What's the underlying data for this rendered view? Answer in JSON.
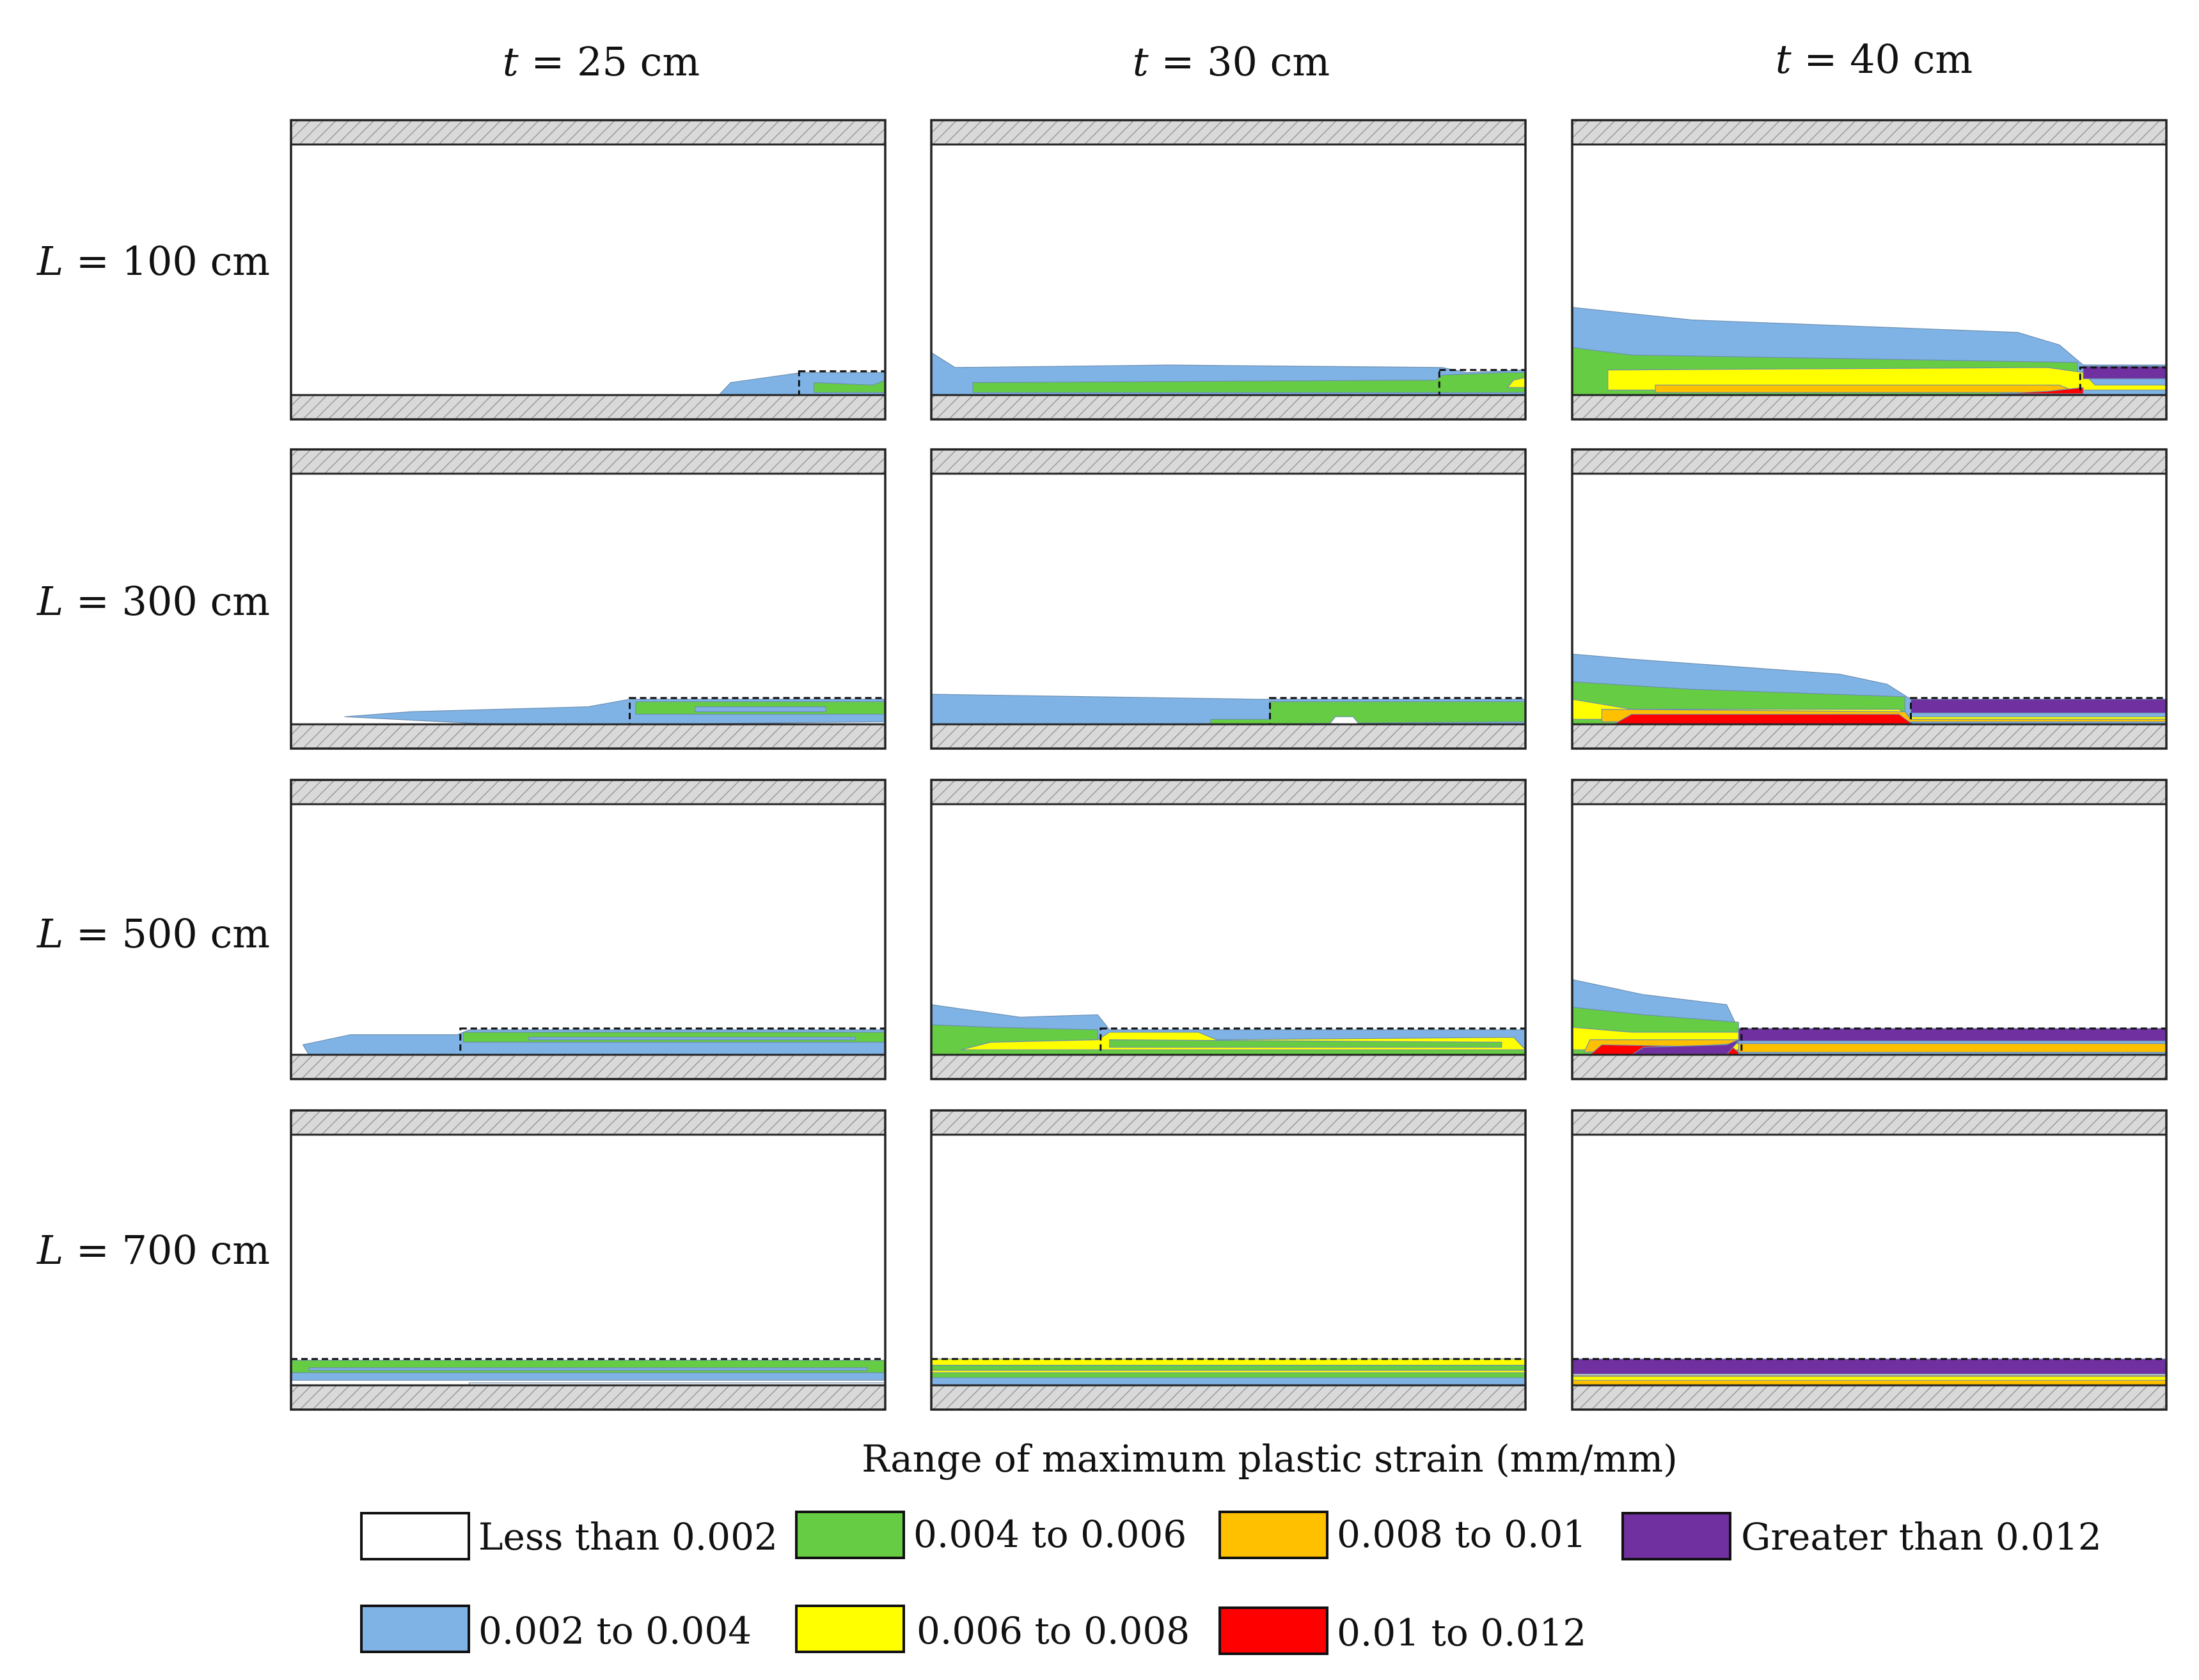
{
  "column_headers": [
    {
      "var": "t",
      "rest": " = 25 cm"
    },
    {
      "var": "t",
      "rest": " = 30 cm"
    },
    {
      "var": "t",
      "rest": " = 40 cm"
    }
  ],
  "row_headers": [
    {
      "var": "L",
      "rest": " = 100 cm"
    },
    {
      "var": "L",
      "rest": " = 300 cm"
    },
    {
      "var": "L",
      "rest": " = 500 cm"
    },
    {
      "var": "L",
      "rest": " = 700 cm"
    }
  ],
  "legend": {
    "title": "Range of maximum plastic strain (mm/mm)",
    "items": [
      {
        "label": "Less than 0.002",
        "color": "#ffffff"
      },
      {
        "label": "0.002 to 0.004",
        "color": "#7fb3e6"
      },
      {
        "label": "0.004 to 0.006",
        "color": "#66cc44"
      },
      {
        "label": "0.006 to 0.008",
        "color": "#ffff00"
      },
      {
        "label": "0.008 to 0.01",
        "color": "#ffc000"
      },
      {
        "label": "0.01 to 0.012",
        "color": "#ff0000"
      },
      {
        "label": "Greater than 0.012",
        "color": "#7030a0"
      }
    ]
  },
  "colors": {
    "plate": "#d9d9d9",
    "outline": "#222222",
    "hatch": "#9a9a9a"
  }
}
